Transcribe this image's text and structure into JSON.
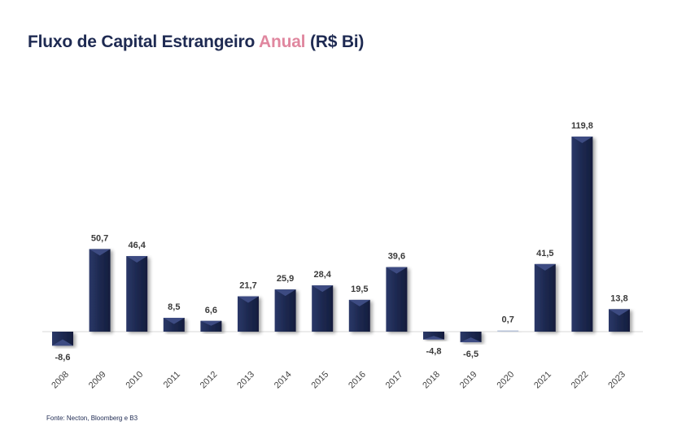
{
  "title": {
    "part1": "Fluxo de Capital Estrangeiro ",
    "accent": "Anual",
    "part2": " (R$ Bi)"
  },
  "source": "Fonte: Necton, Bloomberg e B3",
  "colors": {
    "bar": "#1e2a52",
    "bar_top": "#3d4c82",
    "title": "#1e2a52",
    "accent": "#e0879f",
    "baseline": "#d9d9d9"
  },
  "chart_data": {
    "type": "bar",
    "title": "Fluxo de Capital Estrangeiro Anual (R$ Bi)",
    "xlabel": "",
    "ylabel": "",
    "categories": [
      "2008",
      "2009",
      "2010",
      "2011",
      "2012",
      "2013",
      "2014",
      "2015",
      "2016",
      "2017",
      "2018",
      "2019",
      "2020",
      "2021",
      "2022",
      "2023"
    ],
    "values": [
      -8.6,
      50.7,
      46.4,
      8.5,
      6.6,
      21.7,
      25.9,
      28.4,
      19.5,
      39.6,
      -4.8,
      -6.5,
      0.7,
      41.5,
      119.8,
      13.8
    ],
    "value_labels": [
      "-8,6",
      "50,7",
      "46,4",
      "8,5",
      "6,6",
      "21,7",
      "25,9",
      "28,4",
      "19,5",
      "39,6",
      "-4,8",
      "-6,5",
      "0,7",
      "41,5",
      "119,8",
      "13,8"
    ],
    "grid": false,
    "legend": "none"
  }
}
